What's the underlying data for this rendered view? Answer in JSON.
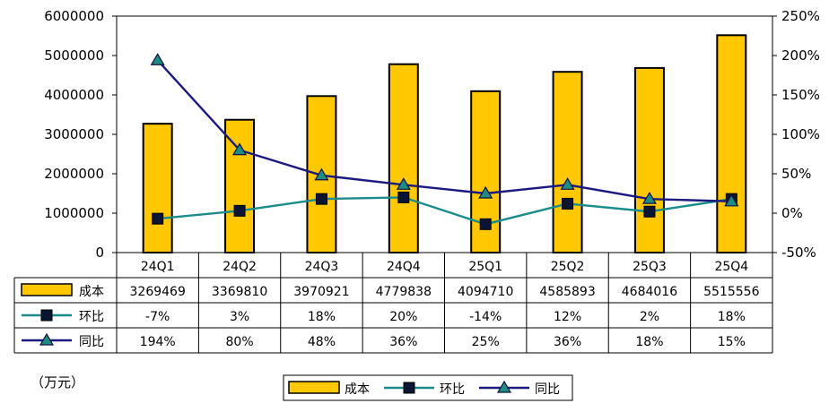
{
  "chart_data": {
    "type": "bar+line",
    "unit_label": "（万元）",
    "categories": [
      "24Q1",
      "24Q2",
      "24Q3",
      "24Q4",
      "25Q1",
      "25Q2",
      "25Q3",
      "25Q4"
    ],
    "left_axis": {
      "ticks": [
        "0",
        "1000000",
        "2000000",
        "3000000",
        "4000000",
        "5000000",
        "6000000"
      ],
      "ylim": [
        0,
        6000000
      ]
    },
    "right_axis": {
      "ticks": [
        "-50%",
        "0%",
        "50%",
        "100%",
        "150%",
        "200%",
        "250%"
      ],
      "ylim": [
        -50,
        250
      ]
    },
    "series": [
      {
        "name": "成本",
        "kind": "bar",
        "axis": "left",
        "color": "#FFC800",
        "values": [
          3269469,
          3369810,
          3970921,
          4779838,
          4094710,
          4585893,
          4684016,
          5515556
        ],
        "labels": [
          "3269469",
          "3369810",
          "3970921",
          "4779838",
          "4094710",
          "4585893",
          "4684016",
          "5515556"
        ]
      },
      {
        "name": "环比",
        "kind": "line",
        "axis": "right",
        "color": "#1B8C8C",
        "marker": "square",
        "values": [
          -7,
          3,
          18,
          20,
          -14,
          12,
          2,
          18
        ],
        "labels": [
          "-7%",
          "3%",
          "18%",
          "20%",
          "-14%",
          "12%",
          "2%",
          "18%"
        ]
      },
      {
        "name": "同比",
        "kind": "line",
        "axis": "right",
        "color": "#1A1A80",
        "marker": "triangle",
        "values": [
          194,
          80,
          48,
          36,
          25,
          36,
          18,
          15
        ],
        "labels": [
          "194%",
          "80%",
          "48%",
          "36%",
          "25%",
          "36%",
          "18%",
          "15%"
        ]
      }
    ],
    "legend": {
      "items": [
        "成本",
        "环比",
        "同比"
      ],
      "placement": "bottom"
    }
  }
}
